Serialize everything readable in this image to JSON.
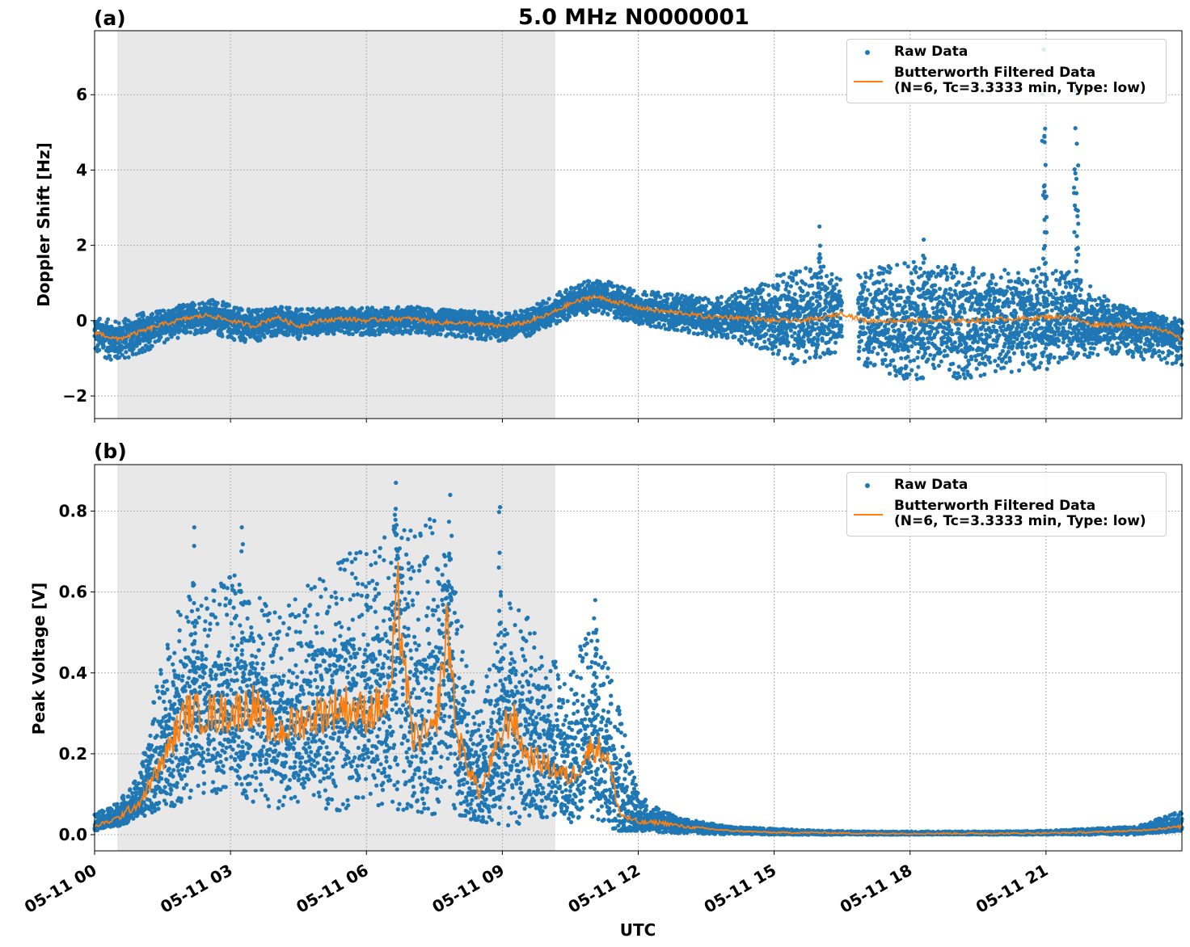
{
  "figure": {
    "suptitle": "5.0 MHz N0000001",
    "xlabel": "UTC"
  },
  "colors": {
    "raw": "#1f77b4",
    "filtered": "#ff7f0e",
    "shade": "#e8e8e8",
    "grid": "#b0b0b0"
  },
  "legend": {
    "raw_label": "Raw Data",
    "filtered_label_line1": "Butterworth Filtered Data",
    "filtered_label_line2": "(N=6, Tc=3.3333 min, Type: low)"
  },
  "chart_data": [
    {
      "panel_label": "(a)",
      "type": "scatter",
      "ylabel": "Doppler Shift [Hz]",
      "xlim_hours": [
        0,
        24
      ],
      "ylim": [
        -2.6,
        7.7
      ],
      "yticks": [
        -2,
        0,
        2,
        4,
        6
      ],
      "ytick_labels": [
        "−2",
        "0",
        "2",
        "4",
        "6"
      ],
      "xtick_hours": [
        0,
        3,
        6,
        9,
        12,
        15,
        18,
        21
      ],
      "xtick_labels": [
        "05-11 00",
        "05-11 03",
        "05-11 06",
        "05-11 09",
        "05-11 12",
        "05-11 15",
        "05-11 18",
        "05-11 21"
      ],
      "shade_hours": [
        0.5,
        10.17
      ],
      "grid": true,
      "legend_position": "upper right",
      "gap_hours": [
        16.5,
        16.85
      ],
      "series": [
        {
          "name": "Butterworth Filtered Data",
          "kind": "line",
          "x": [
            0,
            0.5,
            1,
            1.5,
            2,
            2.5,
            3,
            3.5,
            4,
            4.5,
            5,
            5.5,
            6,
            6.5,
            7,
            7.5,
            8,
            8.5,
            9,
            9.5,
            10,
            10.5,
            11,
            11.5,
            12,
            12.5,
            13,
            13.5,
            14,
            14.5,
            15,
            15.5,
            16,
            16.5,
            17,
            17.5,
            18,
            18.5,
            19,
            19.5,
            20,
            20.5,
            21,
            21.5,
            22,
            22.5,
            23,
            23.5,
            24
          ],
          "y": [
            -0.3,
            -0.5,
            -0.3,
            -0.1,
            0.05,
            0.15,
            0.0,
            -0.15,
            0.1,
            -0.15,
            0.0,
            0.05,
            0.0,
            0.05,
            0.05,
            -0.05,
            -0.05,
            -0.1,
            -0.15,
            -0.05,
            0.15,
            0.45,
            0.65,
            0.5,
            0.35,
            0.25,
            0.2,
            0.1,
            0.1,
            0.05,
            0.0,
            0.0,
            0.05,
            0.2,
            0.0,
            0.0,
            0.0,
            0.0,
            0.0,
            0.0,
            0.05,
            0.05,
            0.1,
            0.1,
            -0.1,
            -0.1,
            -0.15,
            -0.2,
            -0.5
          ]
        },
        {
          "name": "Raw Data",
          "kind": "scatter-envelope",
          "x": [
            0,
            0.5,
            1,
            1.5,
            2,
            2.5,
            3,
            3.5,
            4,
            4.5,
            5,
            5.5,
            6,
            6.5,
            7,
            7.5,
            8,
            8.5,
            9,
            9.5,
            10,
            10.5,
            11,
            11.5,
            12,
            12.5,
            13,
            13.5,
            14,
            14.5,
            15,
            15.5,
            16,
            16.5,
            17,
            17.5,
            18,
            18.5,
            19,
            19.5,
            20,
            20.5,
            21,
            21.5,
            22,
            22.5,
            23,
            23.5,
            24
          ],
          "low": [
            -0.9,
            -1.1,
            -0.9,
            -0.6,
            -0.4,
            -0.3,
            -0.5,
            -0.6,
            -0.4,
            -0.5,
            -0.4,
            -0.35,
            -0.4,
            -0.35,
            -0.35,
            -0.4,
            -0.45,
            -0.5,
            -0.55,
            -0.45,
            -0.2,
            0.05,
            0.2,
            0.05,
            -0.1,
            -0.2,
            -0.3,
            -0.4,
            -0.5,
            -0.7,
            -0.9,
            -1.2,
            -1.0,
            -0.8,
            -1.2,
            -1.4,
            -1.6,
            -1.5,
            -1.6,
            -1.5,
            -1.4,
            -1.4,
            -1.3,
            -1.0,
            -1.0,
            -0.9,
            -1.0,
            -1.1,
            -1.2
          ],
          "high": [
            0.1,
            0.0,
            0.2,
            0.3,
            0.45,
            0.6,
            0.45,
            0.3,
            0.4,
            0.3,
            0.35,
            0.35,
            0.35,
            0.35,
            0.4,
            0.3,
            0.3,
            0.25,
            0.2,
            0.3,
            0.6,
            0.9,
            1.1,
            1.0,
            0.8,
            0.75,
            0.7,
            0.6,
            0.7,
            0.9,
            1.2,
            1.4,
            1.5,
            1.3,
            1.3,
            1.5,
            1.6,
            1.5,
            1.5,
            1.4,
            1.4,
            1.3,
            1.5,
            1.4,
            0.9,
            0.5,
            0.3,
            0.2,
            0.0
          ]
        }
      ],
      "spikes": [
        {
          "x": 16.0,
          "y": 2.5
        },
        {
          "x": 18.3,
          "y": 2.15
        },
        {
          "x": 20.95,
          "y": 7.2
        },
        {
          "x": 20.98,
          "y": 5.1
        },
        {
          "x": 21.65,
          "y": 6.1
        },
        {
          "x": 21.68,
          "y": 4.7
        }
      ]
    },
    {
      "panel_label": "(b)",
      "type": "scatter",
      "ylabel": "Peak Voltage [V]",
      "xlim_hours": [
        0,
        24
      ],
      "ylim": [
        -0.04,
        0.915
      ],
      "yticks": [
        0.0,
        0.2,
        0.4,
        0.6,
        0.8
      ],
      "ytick_labels": [
        "0.0",
        "0.2",
        "0.4",
        "0.6",
        "0.8"
      ],
      "xtick_hours": [
        0,
        3,
        6,
        9,
        12,
        15,
        18,
        21
      ],
      "xtick_labels": [
        "05-11 00",
        "05-11 03",
        "05-11 06",
        "05-11 09",
        "05-11 12",
        "05-11 15",
        "05-11 18",
        "05-11 21"
      ],
      "shade_hours": [
        0.5,
        10.17
      ],
      "grid": true,
      "legend_position": "upper right",
      "series": [
        {
          "name": "Butterworth Filtered Data",
          "kind": "line",
          "x": [
            0,
            0.5,
            1,
            1.5,
            2,
            2.5,
            3,
            3.5,
            4,
            4.5,
            5,
            5.5,
            6,
            6.5,
            6.7,
            7,
            7.5,
            7.8,
            8,
            8.5,
            9,
            9.2,
            9.5,
            10,
            10.5,
            11,
            11.3,
            11.6,
            12,
            12.5,
            13,
            13.5,
            14,
            15,
            16,
            17,
            18,
            19,
            20,
            21,
            22,
            23,
            23.5,
            24
          ],
          "y": [
            0.02,
            0.04,
            0.08,
            0.18,
            0.3,
            0.3,
            0.3,
            0.32,
            0.25,
            0.28,
            0.3,
            0.32,
            0.3,
            0.33,
            0.58,
            0.24,
            0.25,
            0.52,
            0.24,
            0.1,
            0.25,
            0.3,
            0.2,
            0.17,
            0.14,
            0.22,
            0.2,
            0.05,
            0.03,
            0.03,
            0.02,
            0.015,
            0.01,
            0.005,
            0.005,
            0.003,
            0.003,
            0.003,
            0.003,
            0.004,
            0.006,
            0.01,
            0.015,
            0.02
          ]
        },
        {
          "name": "Raw Data",
          "kind": "scatter-envelope",
          "x": [
            0,
            0.5,
            1,
            1.5,
            2,
            2.5,
            3,
            3.5,
            4,
            4.5,
            5,
            5.5,
            6,
            6.5,
            7,
            7.5,
            8,
            8.5,
            9,
            9.5,
            10,
            10.5,
            11,
            11.5,
            12,
            12.5,
            13,
            13.5,
            14,
            15,
            16,
            17,
            18,
            19,
            20,
            21,
            22,
            23,
            23.5,
            24
          ],
          "low": [
            0.01,
            0.02,
            0.04,
            0.06,
            0.08,
            0.1,
            0.1,
            0.08,
            0.06,
            0.07,
            0.06,
            0.06,
            0.07,
            0.05,
            0.06,
            0.05,
            0.04,
            0.03,
            0.02,
            0.03,
            0.03,
            0.03,
            0.04,
            0.01,
            0.01,
            0.005,
            0.003,
            0.002,
            0.001,
            0.0,
            0.0,
            0.0,
            0.0,
            0.0,
            0.0,
            0.0,
            0.0,
            0.0,
            0.005,
            0.01
          ],
          "high": [
            0.05,
            0.08,
            0.15,
            0.45,
            0.6,
            0.6,
            0.65,
            0.6,
            0.55,
            0.6,
            0.65,
            0.7,
            0.7,
            0.8,
            0.75,
            0.8,
            0.6,
            0.3,
            0.6,
            0.55,
            0.45,
            0.4,
            0.55,
            0.35,
            0.1,
            0.06,
            0.04,
            0.03,
            0.02,
            0.015,
            0.01,
            0.008,
            0.008,
            0.008,
            0.008,
            0.01,
            0.015,
            0.02,
            0.04,
            0.06
          ]
        }
      ],
      "spikes": [
        {
          "x": 2.2,
          "y": 0.76
        },
        {
          "x": 3.25,
          "y": 0.76
        },
        {
          "x": 6.65,
          "y": 0.87
        },
        {
          "x": 7.85,
          "y": 0.84
        },
        {
          "x": 8.95,
          "y": 0.81
        },
        {
          "x": 11.05,
          "y": 0.58
        }
      ]
    }
  ]
}
